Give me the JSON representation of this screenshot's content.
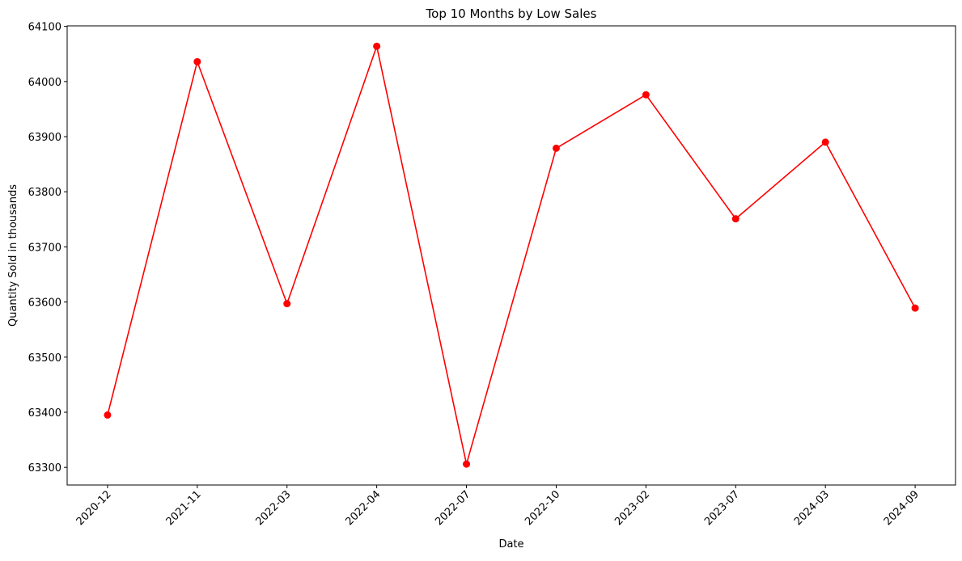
{
  "chart_data": {
    "type": "line",
    "title": "Top 10 Months by Low Sales",
    "x_label": "Date",
    "y_label": "Quantity Sold in thousands",
    "categories": [
      "2020-12",
      "2021-11",
      "2022-03",
      "2022-04",
      "2022-07",
      "2022-10",
      "2023-02",
      "2023-07",
      "2024-03",
      "2024-09"
    ],
    "series": [
      {
        "name": "Low Sales",
        "color": "#ff0000",
        "values": [
          63395,
          64036,
          63597,
          64064,
          63306,
          63879,
          63976,
          63751,
          63890,
          63589
        ]
      }
    ],
    "ylim": [
      63268,
      64101
    ],
    "yticks": [
      63300,
      63400,
      63500,
      63600,
      63700,
      63800,
      63900,
      64000,
      64100
    ],
    "grid": false,
    "legend": false
  }
}
